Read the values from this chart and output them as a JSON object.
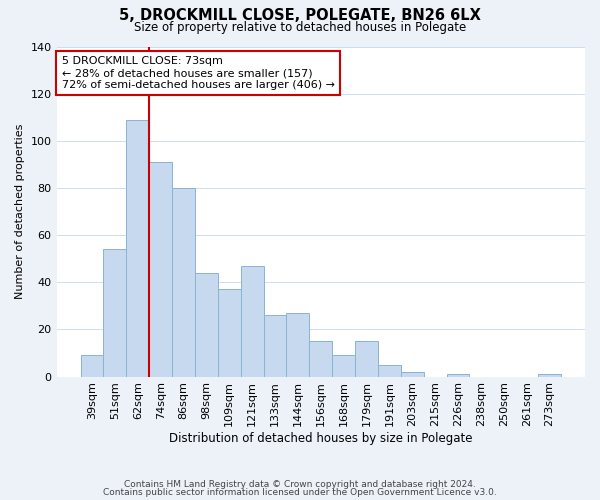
{
  "title": "5, DROCKMILL CLOSE, POLEGATE, BN26 6LX",
  "subtitle": "Size of property relative to detached houses in Polegate",
  "xlabel": "Distribution of detached houses by size in Polegate",
  "ylabel": "Number of detached properties",
  "bar_labels": [
    "39sqm",
    "51sqm",
    "62sqm",
    "74sqm",
    "86sqm",
    "98sqm",
    "109sqm",
    "121sqm",
    "133sqm",
    "144sqm",
    "156sqm",
    "168sqm",
    "179sqm",
    "191sqm",
    "203sqm",
    "215sqm",
    "226sqm",
    "238sqm",
    "250sqm",
    "261sqm",
    "273sqm"
  ],
  "bar_values": [
    9,
    54,
    109,
    91,
    80,
    44,
    37,
    47,
    26,
    27,
    15,
    9,
    15,
    5,
    2,
    0,
    1,
    0,
    0,
    0,
    1
  ],
  "bar_color": "#c6d9ee",
  "bar_edge_color": "#8ab4d4",
  "ylim": [
    0,
    140
  ],
  "yticks": [
    0,
    20,
    40,
    60,
    80,
    100,
    120,
    140
  ],
  "vline_color": "#cc0000",
  "annotation_title": "5 DROCKMILL CLOSE: 73sqm",
  "annotation_line1": "← 28% of detached houses are smaller (157)",
  "annotation_line2": "72% of semi-detached houses are larger (406) →",
  "annotation_box_color": "#ffffff",
  "annotation_box_edge": "#cc0000",
  "footer1": "Contains HM Land Registry data © Crown copyright and database right 2024.",
  "footer2": "Contains public sector information licensed under the Open Government Licence v3.0.",
  "background_color": "#edf2f9",
  "plot_bg_color": "#ffffff"
}
